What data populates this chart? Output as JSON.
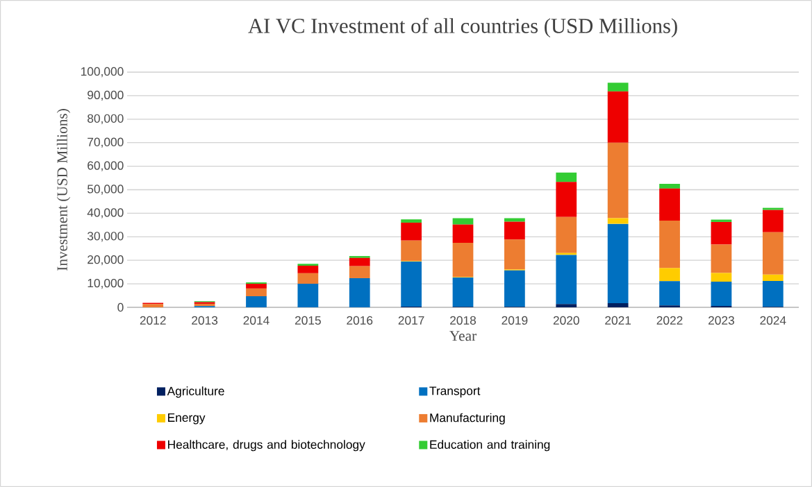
{
  "chart_data": {
    "type": "bar",
    "title": "AI VC Investment of all countries (USD Millions)",
    "xlabel": "Year",
    "ylabel": "Investment (USD Millions)",
    "categories": [
      "2012",
      "2013",
      "2014",
      "2015",
      "2016",
      "2017",
      "2018",
      "2019",
      "2020",
      "2021",
      "2022",
      "2023",
      "2024"
    ],
    "stacked": true,
    "grid": "y",
    "legend": "bottom",
    "ylim": [
      0,
      100000
    ],
    "yticks": [
      0,
      {
        "value": 10000,
        "label": "10,000"
      },
      {
        "value": 20000,
        "label": "20,000"
      },
      {
        "value": 30000,
        "label": "30,000"
      },
      {
        "value": 40000,
        "label": "40,000"
      },
      {
        "value": 50000,
        "label": "50,000"
      },
      {
        "value": 60000,
        "label": "60,000"
      },
      {
        "value": 70000,
        "label": "70,000"
      },
      {
        "value": 80000,
        "label": "80,000"
      },
      {
        "value": 90000,
        "label": "90,000"
      },
      {
        "value": 100000,
        "label": "100,000"
      }
    ],
    "series": [
      {
        "name": "Agriculture",
        "color": "#002060",
        "values": [
          0,
          0,
          0,
          0,
          0,
          300,
          200,
          200,
          1400,
          1800,
          800,
          600,
          200
        ]
      },
      {
        "name": "Transport",
        "color": "#0070c0",
        "values": [
          0,
          500,
          4700,
          10000,
          12400,
          19200,
          12500,
          15500,
          20900,
          33700,
          10300,
          10300,
          11000
        ]
      },
      {
        "name": "Energy",
        "color": "#ffcc00",
        "values": [
          0,
          0,
          0,
          0,
          0,
          200,
          200,
          400,
          800,
          2400,
          5600,
          3700,
          2700
        ]
      },
      {
        "name": "Manufacturing",
        "color": "#ed7d31",
        "values": [
          1400,
          1000,
          3300,
          4500,
          5100,
          8700,
          14500,
          12700,
          15300,
          32100,
          20200,
          12100,
          18000
        ]
      },
      {
        "name": "Healthcare, drugs and biotechnology",
        "color": "#ee0000",
        "values": [
          500,
          700,
          2000,
          3200,
          3500,
          7600,
          7800,
          7600,
          14900,
          21800,
          13600,
          9600,
          9500
        ]
      },
      {
        "name": "Education and training",
        "color": "#33cc33",
        "values": [
          0,
          400,
          600,
          800,
          800,
          1400,
          2700,
          1500,
          4000,
          3700,
          2000,
          1000,
          900
        ]
      }
    ]
  }
}
